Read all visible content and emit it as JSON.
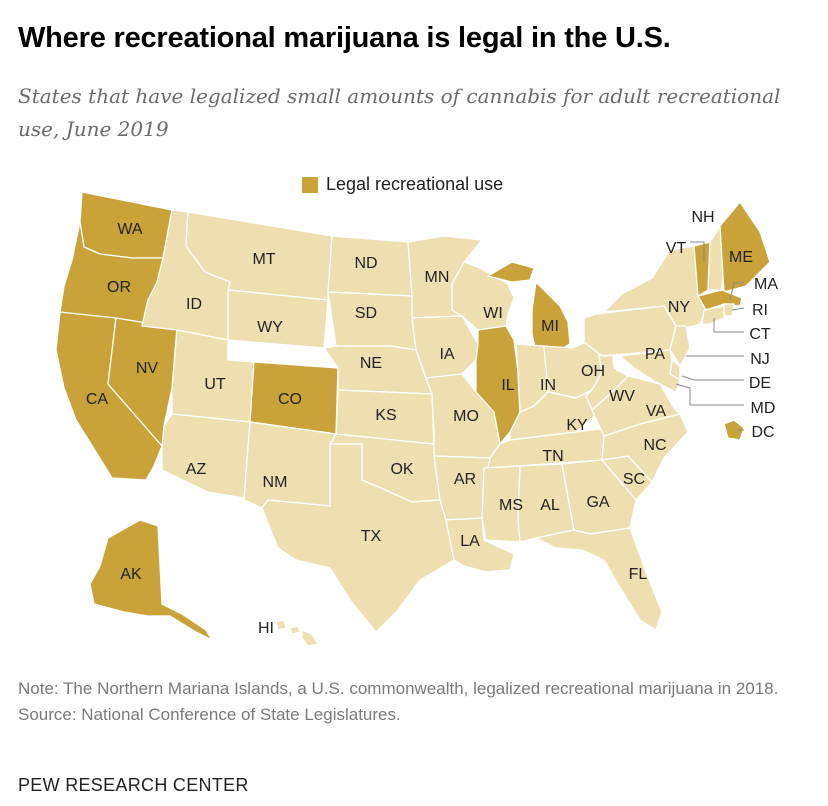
{
  "title": "Where recreational marijuana is legal in the U.S.",
  "subtitle": "States that have legalized small amounts of cannabis for adult recreational use, June 2019",
  "legend": {
    "label": "Legal recreational use"
  },
  "colors": {
    "legal": "#c9a33a",
    "other": "#efdeb0",
    "border": "#ffffff",
    "leader": "#888888"
  },
  "states": [
    {
      "code": "WA",
      "legal": true
    },
    {
      "code": "OR",
      "legal": true
    },
    {
      "code": "CA",
      "legal": true
    },
    {
      "code": "NV",
      "legal": true
    },
    {
      "code": "ID",
      "legal": false
    },
    {
      "code": "MT",
      "legal": false
    },
    {
      "code": "WY",
      "legal": false
    },
    {
      "code": "UT",
      "legal": false
    },
    {
      "code": "CO",
      "legal": true
    },
    {
      "code": "AZ",
      "legal": false
    },
    {
      "code": "NM",
      "legal": false
    },
    {
      "code": "ND",
      "legal": false
    },
    {
      "code": "SD",
      "legal": false
    },
    {
      "code": "NE",
      "legal": false
    },
    {
      "code": "KS",
      "legal": false
    },
    {
      "code": "OK",
      "legal": false
    },
    {
      "code": "TX",
      "legal": false
    },
    {
      "code": "MN",
      "legal": false
    },
    {
      "code": "IA",
      "legal": false
    },
    {
      "code": "MO",
      "legal": false
    },
    {
      "code": "AR",
      "legal": false
    },
    {
      "code": "LA",
      "legal": false
    },
    {
      "code": "WI",
      "legal": false
    },
    {
      "code": "IL",
      "legal": true
    },
    {
      "code": "MI",
      "legal": true
    },
    {
      "code": "IN",
      "legal": false
    },
    {
      "code": "OH",
      "legal": false
    },
    {
      "code": "KY",
      "legal": false
    },
    {
      "code": "TN",
      "legal": false
    },
    {
      "code": "MS",
      "legal": false
    },
    {
      "code": "AL",
      "legal": false
    },
    {
      "code": "GA",
      "legal": false
    },
    {
      "code": "FL",
      "legal": false
    },
    {
      "code": "SC",
      "legal": false
    },
    {
      "code": "NC",
      "legal": false
    },
    {
      "code": "VA",
      "legal": false
    },
    {
      "code": "WV",
      "legal": false
    },
    {
      "code": "PA",
      "legal": false
    },
    {
      "code": "NY",
      "legal": false
    },
    {
      "code": "VT",
      "legal": true
    },
    {
      "code": "NH",
      "legal": false
    },
    {
      "code": "ME",
      "legal": true
    },
    {
      "code": "MA",
      "legal": true
    },
    {
      "code": "RI",
      "legal": false
    },
    {
      "code": "CT",
      "legal": false
    },
    {
      "code": "NJ",
      "legal": false
    },
    {
      "code": "DE",
      "legal": false
    },
    {
      "code": "MD",
      "legal": false
    },
    {
      "code": "DC",
      "legal": true
    },
    {
      "code": "AK",
      "legal": true
    },
    {
      "code": "HI",
      "legal": false
    }
  ],
  "note": "Note: The Northern Mariana Islands, a U.S. commonwealth, legalized recreational marijuana in 2018.",
  "source": "Source: National Conference of State Legislatures.",
  "credit": "PEW RESEARCH CENTER"
}
